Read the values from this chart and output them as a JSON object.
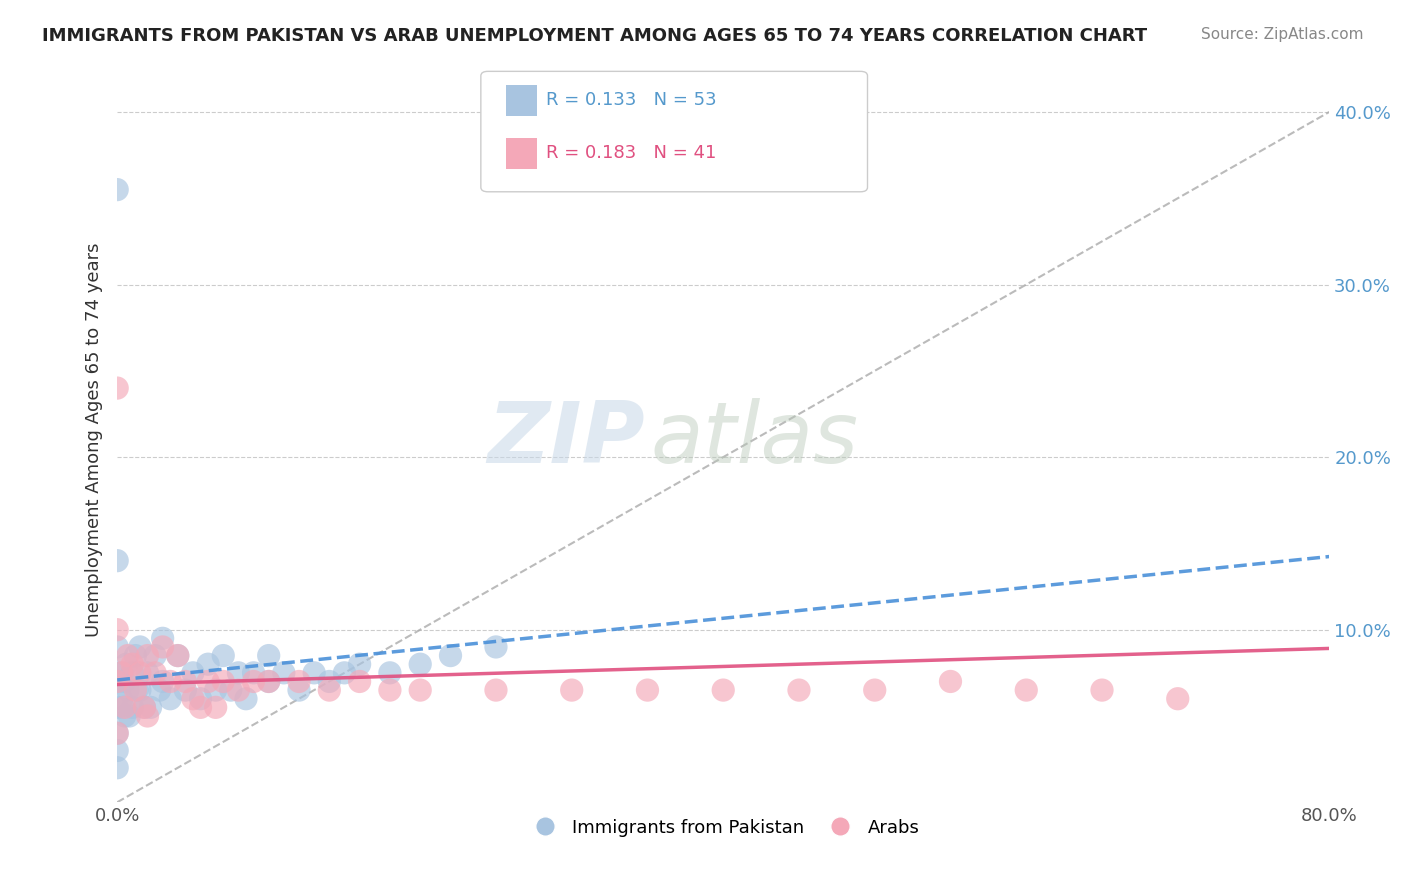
{
  "title": "IMMIGRANTS FROM PAKISTAN VS ARAB UNEMPLOYMENT AMONG AGES 65 TO 74 YEARS CORRELATION CHART",
  "source": "Source: ZipAtlas.com",
  "xlabel": "",
  "ylabel": "Unemployment Among Ages 65 to 74 years",
  "legend_labels": [
    "Immigrants from Pakistan",
    "Arabs"
  ],
  "r_pakistan": 0.133,
  "n_pakistan": 53,
  "r_arabs": 0.183,
  "n_arabs": 41,
  "xlim": [
    0.0,
    0.8
  ],
  "ylim": [
    0.0,
    0.42
  ],
  "ytick_positions": [
    0.0,
    0.1,
    0.2,
    0.3,
    0.4
  ],
  "ytick_labels": [
    "",
    "10.0%",
    "20.0%",
    "30.0%",
    "40.0%"
  ],
  "color_pakistan": "#a8c4e0",
  "color_arabs": "#f4a8b8",
  "trendline_pakistan_color": "#4a90d9",
  "trendline_arabs_color": "#e05080",
  "trendline_ref_color": "#aaaaaa",
  "watermark_zip": "ZIP",
  "watermark_atlas": "atlas",
  "pakistan_x": [
    0.0,
    0.0,
    0.0,
    0.0,
    0.0,
    0.0,
    0.003,
    0.003,
    0.004,
    0.005,
    0.005,
    0.006,
    0.007,
    0.008,
    0.01,
    0.01,
    0.012,
    0.013,
    0.015,
    0.015,
    0.018,
    0.02,
    0.022,
    0.025,
    0.028,
    0.03,
    0.03,
    0.035,
    0.04,
    0.045,
    0.05,
    0.055,
    0.06,
    0.065,
    0.07,
    0.075,
    0.08,
    0.085,
    0.09,
    0.1,
    0.1,
    0.11,
    0.12,
    0.13,
    0.14,
    0.15,
    0.16,
    0.18,
    0.2,
    0.22,
    0.25,
    0.0,
    0.0
  ],
  "pakistan_y": [
    0.355,
    0.14,
    0.09,
    0.07,
    0.055,
    0.04,
    0.075,
    0.06,
    0.055,
    0.07,
    0.05,
    0.08,
    0.065,
    0.05,
    0.075,
    0.055,
    0.085,
    0.065,
    0.09,
    0.065,
    0.055,
    0.075,
    0.055,
    0.085,
    0.065,
    0.095,
    0.07,
    0.06,
    0.085,
    0.065,
    0.075,
    0.06,
    0.08,
    0.065,
    0.085,
    0.065,
    0.075,
    0.06,
    0.075,
    0.085,
    0.07,
    0.075,
    0.065,
    0.075,
    0.07,
    0.075,
    0.08,
    0.075,
    0.08,
    0.085,
    0.09,
    0.03,
    0.02
  ],
  "arabs_x": [
    0.0,
    0.0,
    0.0,
    0.0,
    0.003,
    0.005,
    0.007,
    0.01,
    0.012,
    0.015,
    0.018,
    0.02,
    0.025,
    0.03,
    0.035,
    0.04,
    0.045,
    0.05,
    0.055,
    0.06,
    0.065,
    0.07,
    0.08,
    0.09,
    0.1,
    0.12,
    0.14,
    0.16,
    0.18,
    0.2,
    0.25,
    0.3,
    0.35,
    0.4,
    0.45,
    0.5,
    0.55,
    0.6,
    0.65,
    0.7,
    0.02
  ],
  "arabs_y": [
    0.24,
    0.1,
    0.07,
    0.04,
    0.075,
    0.055,
    0.085,
    0.08,
    0.065,
    0.075,
    0.055,
    0.085,
    0.075,
    0.09,
    0.07,
    0.085,
    0.07,
    0.06,
    0.055,
    0.07,
    0.055,
    0.07,
    0.065,
    0.07,
    0.07,
    0.07,
    0.065,
    0.07,
    0.065,
    0.065,
    0.065,
    0.065,
    0.065,
    0.065,
    0.065,
    0.065,
    0.07,
    0.065,
    0.065,
    0.06,
    0.05
  ]
}
